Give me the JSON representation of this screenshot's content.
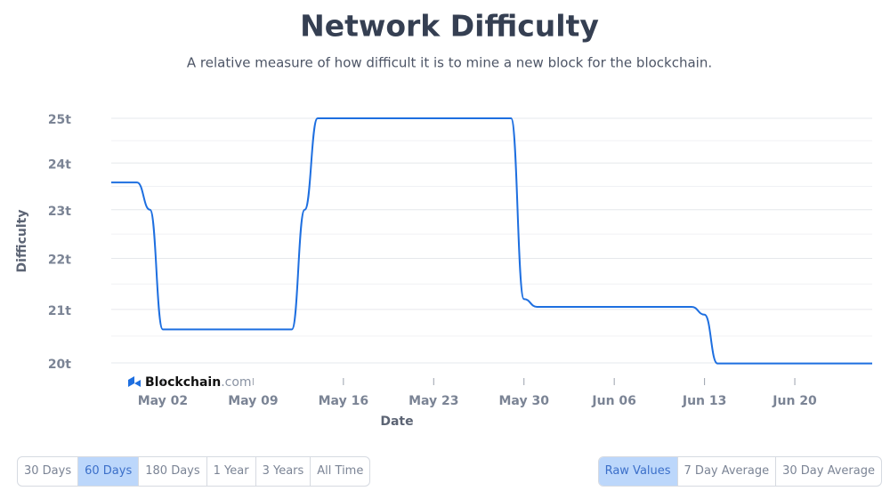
{
  "title": "Network Difficulty",
  "subtitle": "A relative measure of how difficult it is to mine a new block for the blockchain.",
  "brand": {
    "name": "Blockchain",
    "suffix": ".com"
  },
  "range_buttons": [
    {
      "label": "30 Days",
      "selected": false
    },
    {
      "label": "60 Days",
      "selected": true
    },
    {
      "label": "180 Days",
      "selected": false
    },
    {
      "label": "1 Year",
      "selected": false
    },
    {
      "label": "3 Years",
      "selected": false
    },
    {
      "label": "All Time",
      "selected": false
    }
  ],
  "average_buttons": [
    {
      "label": "Raw Values",
      "selected": true
    },
    {
      "label": "7 Day Average",
      "selected": false
    },
    {
      "label": "30 Day Average",
      "selected": false
    }
  ],
  "chart_data": {
    "type": "line",
    "x_label": "Date",
    "y_label": "Difficulty",
    "color": "#1e6fe0",
    "y_scale": "log",
    "grid": true,
    "categories": [
      null,
      null,
      null,
      null,
      "May 02",
      null,
      null,
      null,
      null,
      null,
      null,
      "May 09",
      null,
      null,
      null,
      null,
      null,
      null,
      "May 16",
      null,
      null,
      null,
      null,
      null,
      null,
      "May 23",
      null,
      null,
      null,
      null,
      null,
      null,
      "May 30",
      null,
      null,
      null,
      null,
      null,
      null,
      "Jun 06",
      null,
      null,
      null,
      null,
      null,
      null,
      "Jun 13",
      null,
      null,
      null,
      null,
      null,
      null,
      "Jun 20",
      null,
      null,
      null,
      null,
      null,
      null
    ],
    "values": [
      23.58,
      23.58,
      23.58,
      23.0,
      20.62,
      20.62,
      20.62,
      20.62,
      20.62,
      20.62,
      20.62,
      20.62,
      20.62,
      20.62,
      20.62,
      23.0,
      25.0,
      25.0,
      25.0,
      25.0,
      25.0,
      25.0,
      25.0,
      25.0,
      25.0,
      25.0,
      25.0,
      25.0,
      25.0,
      25.0,
      25.0,
      25.0,
      21.2,
      21.05,
      21.05,
      21.05,
      21.05,
      21.05,
      21.05,
      21.05,
      21.05,
      21.05,
      21.05,
      21.05,
      21.05,
      21.05,
      20.9,
      19.99,
      19.99,
      19.99,
      19.99,
      19.99,
      19.99,
      19.99,
      19.99,
      19.99,
      19.99,
      19.99,
      19.99,
      19.99
    ],
    "ylim": [
      20,
      25
    ],
    "yticks": [
      {
        "value": 20,
        "label": "20t"
      },
      {
        "value": 21,
        "label": "21t"
      },
      {
        "value": 22,
        "label": "22t"
      },
      {
        "value": 23,
        "label": "23t"
      },
      {
        "value": 24,
        "label": "24t"
      },
      {
        "value": 25,
        "label": "25t"
      }
    ]
  }
}
